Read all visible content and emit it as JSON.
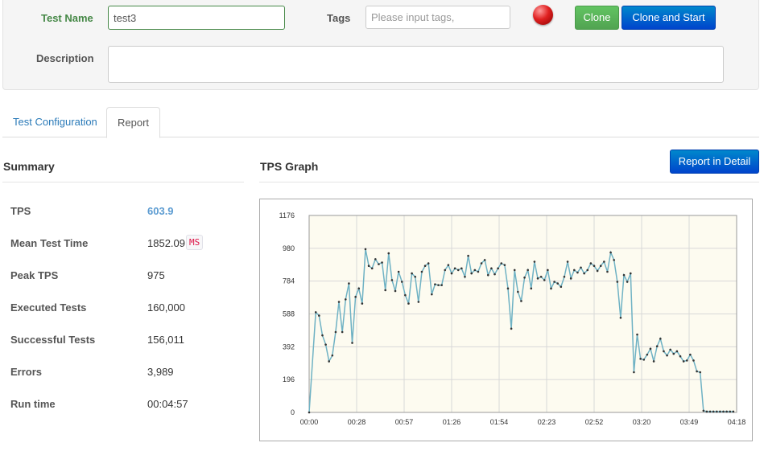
{
  "form": {
    "test_name_label": "Test Name",
    "test_name_value": "test3",
    "tags_label": "Tags",
    "tags_placeholder": "Please input tags,",
    "clone_label": "Clone",
    "clone_start_label": "Clone and Start",
    "description_label": "Description",
    "description_value": ""
  },
  "tabs": [
    {
      "label": "Test Configuration",
      "active": false
    },
    {
      "label": "Report",
      "active": true
    }
  ],
  "summary": {
    "title": "Summary",
    "rows": [
      {
        "label": "TPS",
        "value": "603.9"
      },
      {
        "label": "Mean Test Time",
        "value": "1852.09",
        "unit": "MS"
      },
      {
        "label": "Peak TPS",
        "value": "975"
      },
      {
        "label": "Executed Tests",
        "value": "160,000"
      },
      {
        "label": "Successful Tests",
        "value": "156,011"
      },
      {
        "label": "Errors",
        "value": "3,989"
      },
      {
        "label": "Run time",
        "value": "00:04:57"
      }
    ]
  },
  "graph": {
    "title": "TPS Graph",
    "detail_button": "Report in Detail"
  },
  "colors": {
    "accent_blue": "#0055cc",
    "success_green": "#51a351",
    "status_red": "#e02020",
    "line": "#6fb2c4",
    "plot_bg": "#fdfbf0"
  },
  "chart_data": {
    "type": "line",
    "title": "",
    "xlabel": "",
    "ylabel": "",
    "ylim": [
      0,
      1176
    ],
    "yticks": [
      "0",
      "196",
      "392",
      "588",
      "784",
      "980",
      "1176"
    ],
    "xticks": [
      "00:00",
      "00:28",
      "00:57",
      "01:26",
      "01:54",
      "02:23",
      "02:52",
      "03:20",
      "03:49",
      "04:18"
    ],
    "xlim_seconds": [
      0,
      258
    ],
    "grid": true,
    "series": [
      {
        "x": [
          0,
          4,
          6,
          8,
          10,
          12,
          14,
          16,
          18,
          20,
          22,
          24,
          26,
          28,
          30,
          32,
          34,
          36,
          38,
          40,
          42,
          44,
          46,
          48,
          50,
          52,
          54,
          56,
          58,
          60,
          62,
          64,
          66,
          68,
          70,
          72,
          74,
          76,
          78,
          80,
          82,
          84,
          86,
          88,
          90,
          92,
          94,
          96,
          98,
          100,
          102,
          104,
          106,
          108,
          110,
          112,
          114,
          116,
          118,
          120,
          122,
          124,
          126,
          128,
          130,
          132,
          134,
          136,
          138,
          140,
          142,
          144,
          146,
          148,
          150,
          152,
          154,
          156,
          158,
          160,
          162,
          164,
          166,
          168,
          170,
          172,
          174,
          176,
          178,
          180,
          182,
          184,
          186,
          188,
          190,
          192,
          194,
          196,
          198,
          200,
          202,
          204,
          206,
          208,
          210,
          212,
          214,
          216,
          218,
          220,
          222,
          224,
          226,
          228,
          230,
          232,
          234,
          236,
          238,
          240,
          242,
          244,
          246,
          248,
          250,
          252,
          254,
          256
        ],
        "values": [
          0,
          598,
          578,
          460,
          405,
          305,
          340,
          480,
          660,
          480,
          675,
          770,
          415,
          690,
          740,
          650,
          975,
          875,
          860,
          915,
          885,
          895,
          730,
          950,
          790,
          725,
          840,
          780,
          700,
          650,
          830,
          810,
          660,
          840,
          875,
          890,
          705,
          765,
          760,
          760,
          850,
          880,
          830,
          860,
          850,
          860,
          810,
          935,
          830,
          850,
          840,
          890,
          910,
          820,
          860,
          825,
          860,
          890,
          880,
          740,
          500,
          850,
          720,
          665,
          805,
          850,
          740,
          900,
          800,
          810,
          790,
          850,
          740,
          780,
          770,
          750,
          810,
          900,
          800,
          850,
          835,
          865,
          830,
          850,
          890,
          875,
          845,
          875,
          900,
          840,
          955,
          910,
          780,
          565,
          820,
          780,
          830,
          240,
          465,
          320,
          315,
          345,
          380,
          305,
          395,
          440,
          365,
          340,
          375,
          350,
          365,
          335,
          305,
          310,
          345,
          310,
          245,
          240,
          10,
          5,
          5,
          5,
          5,
          5,
          5,
          5,
          5,
          5
        ]
      }
    ]
  }
}
